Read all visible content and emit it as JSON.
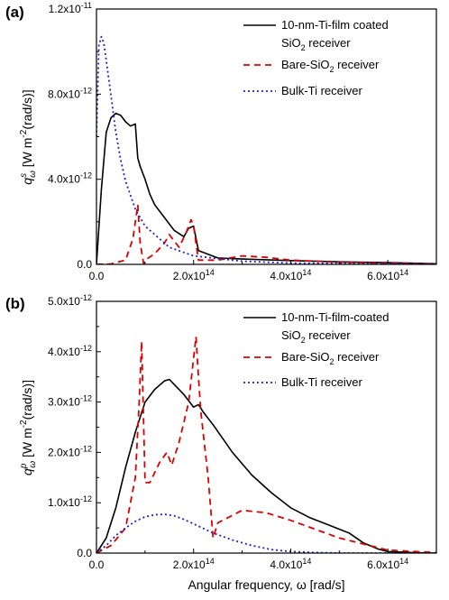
{
  "chart_data": [
    {
      "type": "line",
      "panel_label": "(a)",
      "ylabel_base": "q",
      "ylabel_sup": "s",
      "ylabel_sub": "ω",
      "ylabel_unit_pre": " [W m",
      "ylabel_unit_exp": "-2",
      "ylabel_unit_post": "(rad/s)]",
      "xlabel": "",
      "xlim": [
        0,
        700000000000000.0
      ],
      "ylim": [
        0,
        1.2e-11
      ],
      "x_ticks": [
        {
          "value": 0,
          "label": "0.0",
          "base": "",
          "exp": ""
        },
        {
          "value": 200000000000000.0,
          "label": "",
          "base": "2.0x10",
          "exp": "14"
        },
        {
          "value": 400000000000000.0,
          "label": "",
          "base": "4.0x10",
          "exp": "14"
        },
        {
          "value": 600000000000000.0,
          "label": "",
          "base": "6.0x10",
          "exp": "14"
        }
      ],
      "y_ticks": [
        {
          "value": 0,
          "label": "0.0",
          "base": "",
          "exp": ""
        },
        {
          "value": 4e-12,
          "label": "",
          "base": "4.0x10",
          "exp": "-12"
        },
        {
          "value": 8e-12,
          "label": "",
          "base": "8.0x10",
          "exp": "-12"
        },
        {
          "value": 1.2e-11,
          "label": "",
          "base": "1.2x10",
          "exp": "-11"
        }
      ],
      "legend_position": "top-right",
      "series": [
        {
          "name": "10-nm-Ti-film coated SiO2 receiver",
          "legend_lines": [
            {
              "text": "10-nm-Ti-film coated",
              "sub": ""
            },
            {
              "text": "SiO",
              "sub": "2",
              "post": " receiver"
            }
          ],
          "color": "#000000",
          "dash": "",
          "x": [
            0,
            10000000000000.0,
            20000000000000.0,
            30000000000000.0,
            40000000000000.0,
            50000000000000.0,
            60000000000000.0,
            70000000000000.0,
            80000000000000.0,
            85000000000000.0,
            90000000000000.0,
            100000000000000.0,
            110000000000000.0,
            120000000000000.0,
            140000000000000.0,
            160000000000000.0,
            180000000000000.0,
            190000000000000.0,
            200000000000000.0,
            210000000000000.0,
            250000000000000.0,
            300000000000000.0,
            400000000000000.0,
            500000000000000.0,
            600000000000000.0,
            700000000000000.0
          ],
          "y": [
            0,
            3.5e-12,
            6.2e-12,
            6.9e-12,
            7.1e-12,
            7e-12,
            6.7e-12,
            6.5e-12,
            6.6e-12,
            5e-12,
            4.6e-12,
            4e-12,
            3.3e-12,
            2.8e-12,
            2.2e-12,
            1.6e-12,
            1.3e-12,
            1.7e-12,
            1.8e-12,
            6.5e-13,
            3e-13,
            2.5e-13,
            1.8e-13,
            1.2e-13,
            8e-14,
            3e-14
          ]
        },
        {
          "name": "Bare-SiO2 receiver",
          "legend_lines": [
            {
              "text": "Bare-SiO",
              "sub": "2",
              "post": " receiver"
            }
          ],
          "color": "#dd0000",
          "dash": "7,5",
          "x": [
            0,
            30000000000000.0,
            60000000000000.0,
            75000000000000.0,
            85000000000000.0,
            90000000000000.0,
            97000000000000.0,
            100000000000000.0,
            120000000000000.0,
            140000000000000.0,
            150000000000000.0,
            170000000000000.0,
            185000000000000.0,
            195000000000000.0,
            200000000000000.0,
            210000000000000.0,
            250000000000000.0,
            300000000000000.0,
            350000000000000.0,
            400000000000000.0,
            500000000000000.0,
            600000000000000.0,
            700000000000000.0
          ],
          "y": [
            0,
            2e-14,
            2e-13,
            1.2e-12,
            2.8e-12,
            1e-12,
            5e-14,
            2e-13,
            5e-13,
            1e-12,
            1.4e-12,
            8e-13,
            1.5e-12,
            2.1e-12,
            1.8e-12,
            2e-13,
            2e-13,
            4e-13,
            3.3e-13,
            2e-13,
            1e-13,
            5e-14,
            2e-14
          ]
        },
        {
          "name": "Bulk-Ti receiver",
          "legend_lines": [
            {
              "text": "Bulk-Ti receiver",
              "sub": ""
            }
          ],
          "color": "#1f1fd0",
          "dash": "2,3",
          "x": [
            0,
            5000000000000.0,
            10000000000000.0,
            15000000000000.0,
            20000000000000.0,
            30000000000000.0,
            40000000000000.0,
            50000000000000.0,
            60000000000000.0,
            80000000000000.0,
            100000000000000.0,
            150000000000000.0,
            200000000000000.0,
            300000000000000.0,
            400000000000000.0,
            700000000000000.0
          ],
          "y": [
            6e-12,
            1.03e-11,
            1.07e-11,
            1.04e-11,
            9.6e-12,
            7.9e-12,
            6.2e-12,
            4.9e-12,
            3.9e-12,
            2.6e-12,
            1.8e-12,
            8e-13,
            4e-13,
            1.5e-13,
            6e-14,
            1e-14
          ]
        }
      ]
    },
    {
      "type": "line",
      "panel_label": "(b)",
      "ylabel_base": "q",
      "ylabel_sup": "p",
      "ylabel_sub": "ω",
      "ylabel_unit_pre": " [W m",
      "ylabel_unit_exp": "-2",
      "ylabel_unit_post": "(rad/s)]",
      "xlabel": "Angular frequency, ω [rad/s]",
      "xlim": [
        0,
        700000000000000.0
      ],
      "ylim": [
        0,
        5e-12
      ],
      "x_ticks": [
        {
          "value": 0,
          "label": "0.0",
          "base": "",
          "exp": ""
        },
        {
          "value": 200000000000000.0,
          "label": "",
          "base": "2.0x10",
          "exp": "14"
        },
        {
          "value": 400000000000000.0,
          "label": "",
          "base": "4.0x10",
          "exp": "14"
        },
        {
          "value": 600000000000000.0,
          "label": "",
          "base": "6.0x10",
          "exp": "14"
        }
      ],
      "y_ticks": [
        {
          "value": 0,
          "label": "0.0",
          "base": "",
          "exp": ""
        },
        {
          "value": 1e-12,
          "label": "",
          "base": "1.0x10",
          "exp": "-12"
        },
        {
          "value": 2e-12,
          "label": "",
          "base": "2.0x10",
          "exp": "-12"
        },
        {
          "value": 3e-12,
          "label": "",
          "base": "3.0x10",
          "exp": "-12"
        },
        {
          "value": 4e-12,
          "label": "",
          "base": "4.0x10",
          "exp": "-12"
        },
        {
          "value": 5e-12,
          "label": "",
          "base": "5.0x10",
          "exp": "-12"
        }
      ],
      "legend_position": "top-right",
      "series": [
        {
          "name": "10-nm-Ti-film-coated SiO2 receiver",
          "legend_lines": [
            {
              "text": "10-nm-Ti-film-coated",
              "sub": ""
            },
            {
              "text": "SiO",
              "sub": "2",
              "post": " receiver"
            }
          ],
          "color": "#000000",
          "dash": "",
          "x": [
            0,
            20000000000000.0,
            40000000000000.0,
            60000000000000.0,
            80000000000000.0,
            100000000000000.0,
            120000000000000.0,
            140000000000000.0,
            150000000000000.0,
            160000000000000.0,
            180000000000000.0,
            200000000000000.0,
            210000000000000.0,
            220000000000000.0,
            240000000000000.0,
            280000000000000.0,
            320000000000000.0,
            360000000000000.0,
            400000000000000.0,
            440000000000000.0,
            480000000000000.0,
            520000000000000.0,
            550000000000000.0,
            580000000000000.0,
            600000000000000.0,
            650000000000000.0,
            700000000000000.0
          ],
          "y": [
            0,
            3e-13,
            9e-13,
            1.7e-12,
            2.4e-12,
            3e-12,
            3.25e-12,
            3.42e-12,
            3.45e-12,
            3.35e-12,
            3.15e-12,
            2.9e-12,
            2.95e-12,
            2.8e-12,
            2.55e-12,
            2e-12,
            1.55e-12,
            1.2e-12,
            9e-13,
            7e-13,
            5.5e-13,
            4e-13,
            2e-13,
            8e-14,
            3e-14,
            1e-14,
            0
          ]
        },
        {
          "name": "Bare-SiO2 receiver",
          "legend_lines": [
            {
              "text": "Bare-SiO",
              "sub": "2",
              "post": " receiver"
            }
          ],
          "color": "#dd0000",
          "dash": "7,5",
          "x": [
            0,
            30000000000000.0,
            60000000000000.0,
            80000000000000.0,
            88000000000000.0,
            93000000000000.0,
            100000000000000.0,
            110000000000000.0,
            130000000000000.0,
            145000000000000.0,
            155000000000000.0,
            170000000000000.0,
            190000000000000.0,
            205000000000000.0,
            210000000000000.0,
            215000000000000.0,
            230000000000000.0,
            240000000000000.0,
            250000000000000.0,
            300000000000000.0,
            350000000000000.0,
            400000000000000.0,
            500000000000000.0,
            600000000000000.0,
            700000000000000.0
          ],
          "y": [
            0,
            1.5e-13,
            5e-13,
            1.5e-12,
            3e-12,
            4.2e-12,
            1.4e-12,
            1.4e-12,
            1.8e-12,
            2e-12,
            1.75e-12,
            2.2e-12,
            3e-12,
            4.3e-12,
            3.5e-12,
            2.8e-12,
            1.5e-12,
            3e-13,
            6e-13,
            8.5e-13,
            8e-13,
            6.5e-13,
            3e-13,
            6e-14,
            1e-14
          ]
        },
        {
          "name": "Bulk-Ti receiver",
          "legend_lines": [
            {
              "text": "Bulk-Ti receiver",
              "sub": ""
            }
          ],
          "color": "#1f1fd0",
          "dash": "2,3",
          "x": [
            0,
            20000000000000.0,
            40000000000000.0,
            60000000000000.0,
            80000000000000.0,
            100000000000000.0,
            120000000000000.0,
            140000000000000.0,
            160000000000000.0,
            180000000000000.0,
            200000000000000.0,
            240000000000000.0,
            280000000000000.0,
            320000000000000.0,
            360000000000000.0,
            400000000000000.0,
            450000000000000.0,
            500000000000000.0,
            700000000000000.0
          ],
          "y": [
            0,
            1.5e-13,
            3.5e-13,
            5e-13,
            6.3e-13,
            7.2e-13,
            7.6e-13,
            7.7e-13,
            7.4e-13,
            6.7e-13,
            5.8e-13,
            4e-13,
            2.6e-13,
            1.5e-13,
            7e-14,
            3e-14,
            1e-14,
            0,
            0
          ]
        }
      ]
    }
  ]
}
